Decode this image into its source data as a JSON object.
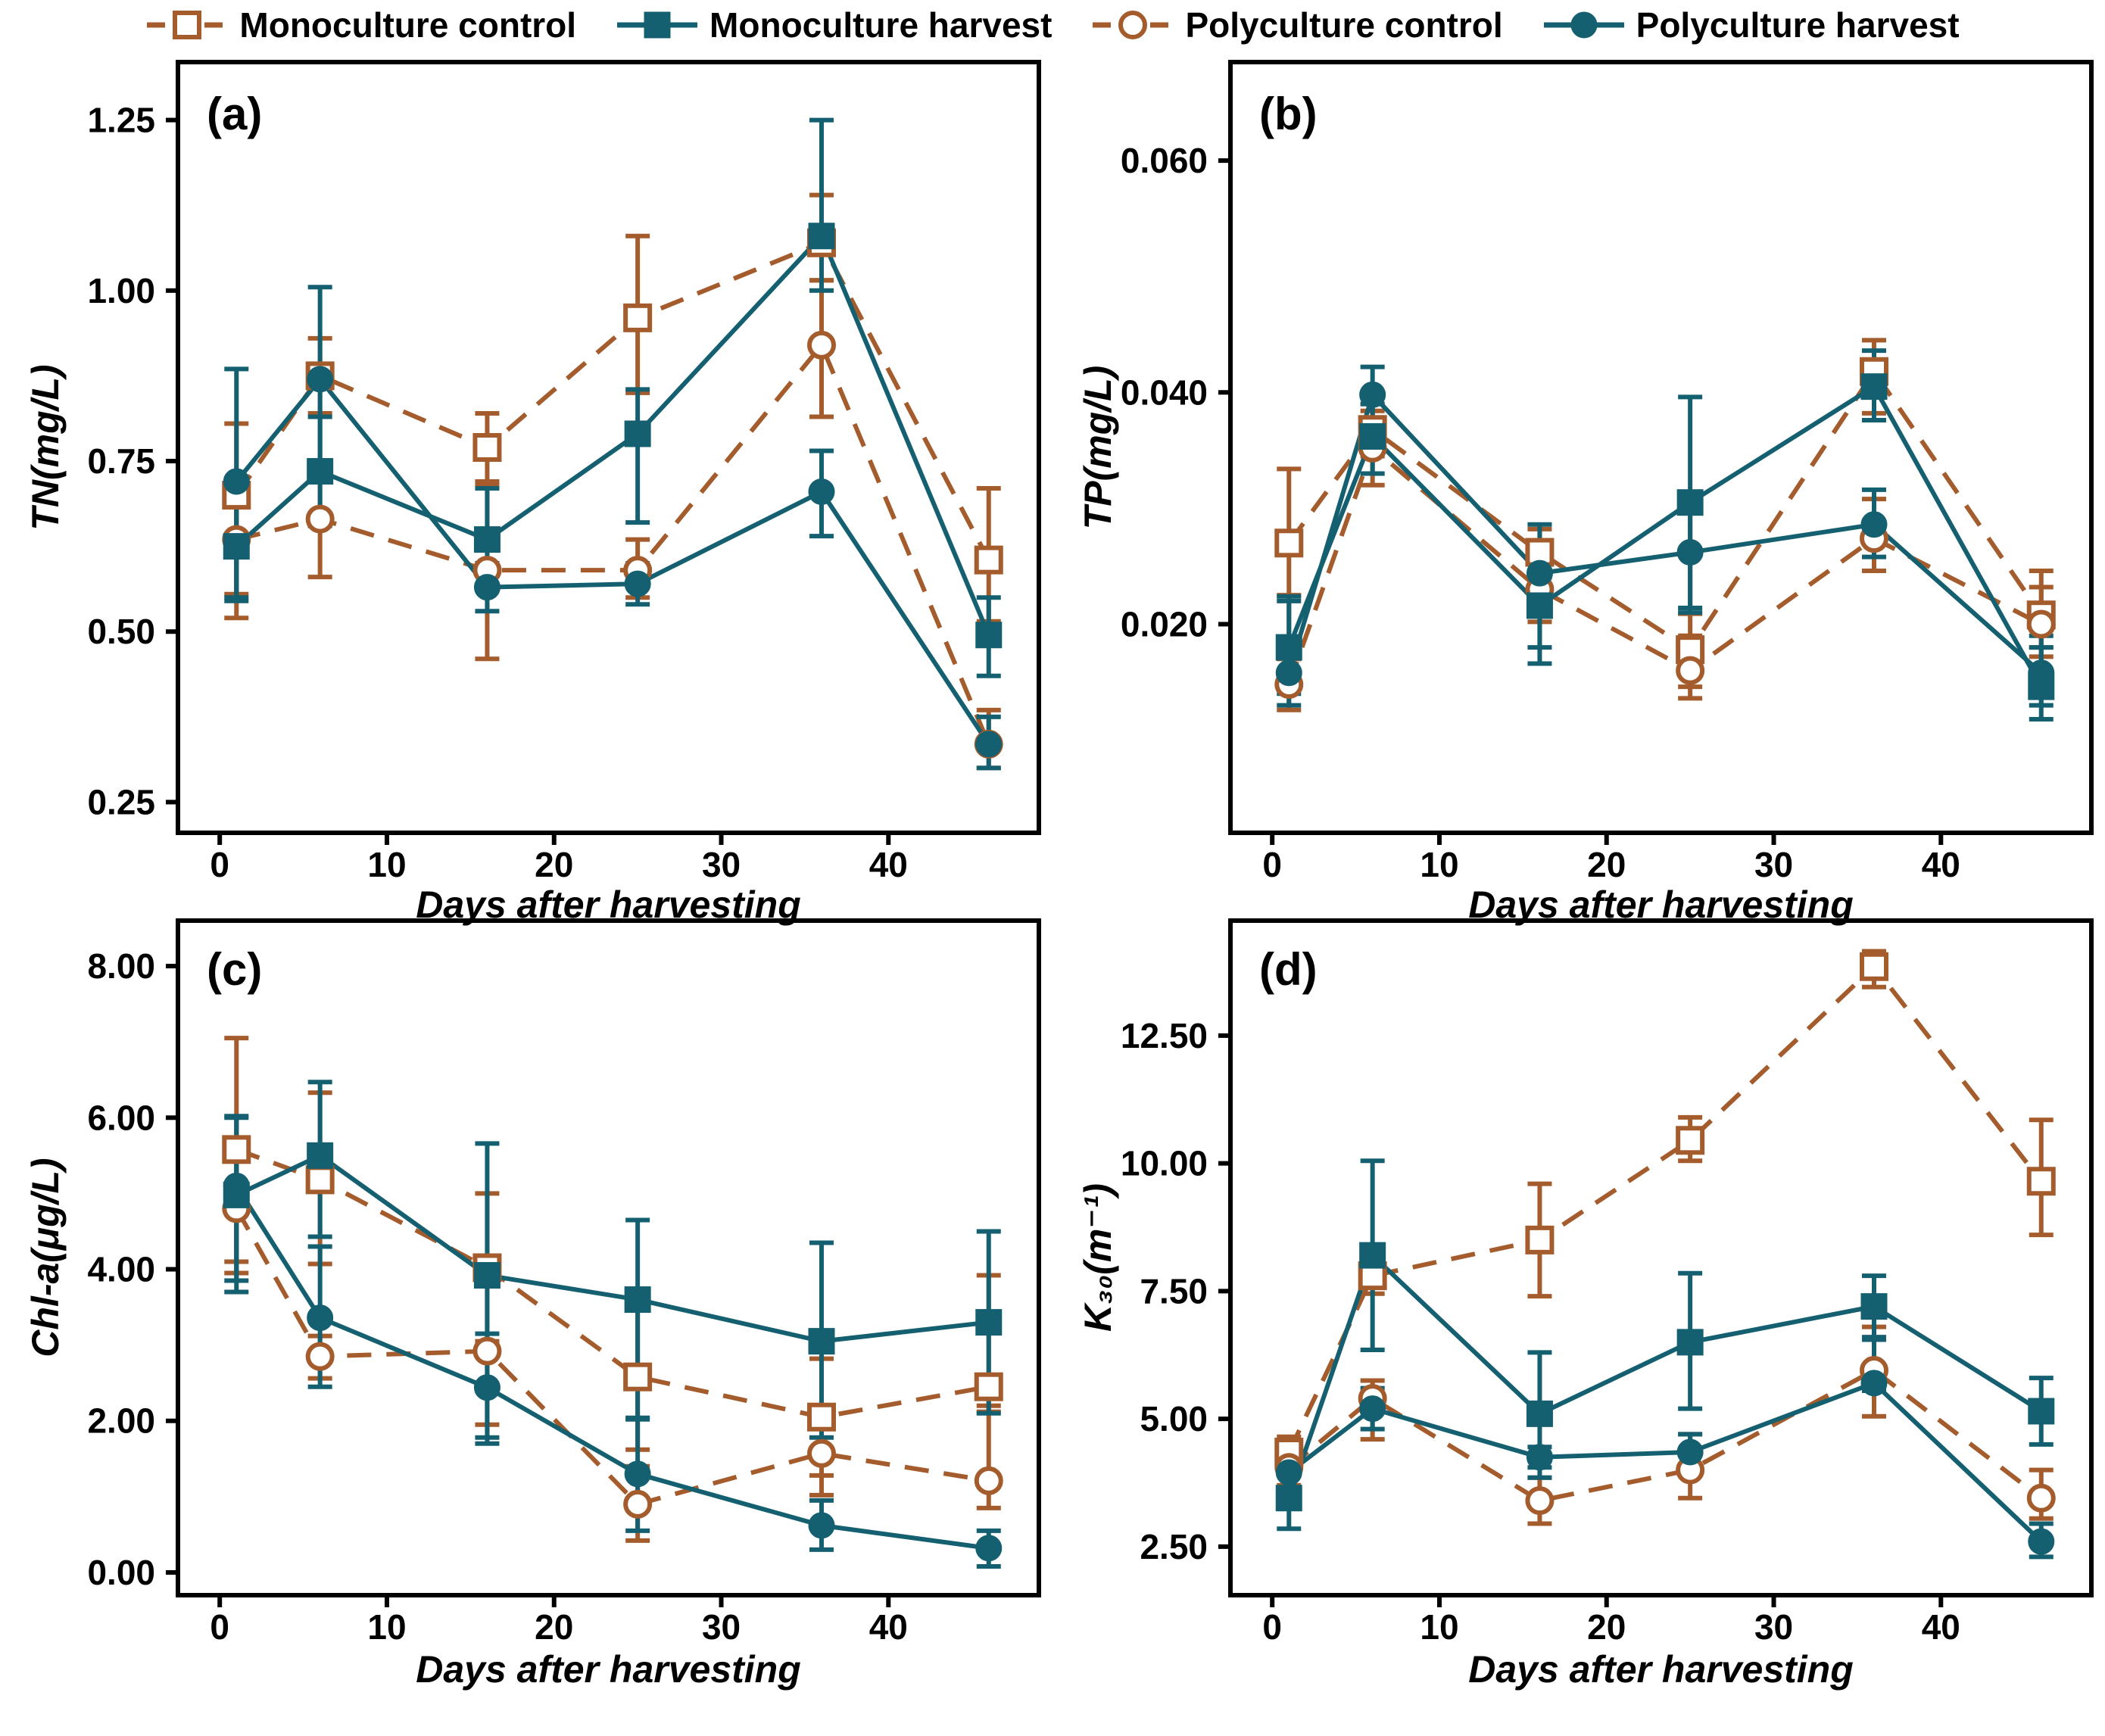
{
  "colors": {
    "brown": "#A55C2D",
    "teal": "#156070",
    "axis": "#000000",
    "background": "#FFFFFF"
  },
  "legend": {
    "items": [
      {
        "label": "Monoculture control",
        "marker": "square-open",
        "color": "#A55C2D",
        "linestyle": "dashed"
      },
      {
        "label": "Monoculture harvest",
        "marker": "square-filled",
        "color": "#156070",
        "linestyle": "solid"
      },
      {
        "label": "Polyculture control",
        "marker": "circle-open",
        "color": "#A55C2D",
        "linestyle": "dashed"
      },
      {
        "label": "Polyculture harvest",
        "marker": "circle-filled",
        "color": "#156070",
        "linestyle": "solid"
      }
    ]
  },
  "chart_data": [
    {
      "panel_label": "(a)",
      "type": "line",
      "ylabel": "TN(mg/L)",
      "xlabel": "Days after harvesting",
      "x": [
        1,
        6,
        16,
        25,
        36,
        46
      ],
      "xlim": [
        -2.5,
        49
      ],
      "xticks": [
        0,
        10,
        20,
        30,
        40
      ],
      "ylim": [
        0.205,
        1.335
      ],
      "yticks": [
        0.25,
        0.5,
        0.75,
        1.0,
        1.25
      ],
      "ytick_labels": [
        "0.25",
        "0.50",
        "0.75",
        "1.00",
        "1.25"
      ],
      "grid": false,
      "series": [
        {
          "name": "Monoculture control",
          "marker": "square-open",
          "color": "#A55C2D",
          "linestyle": "dashed",
          "values": [
            0.7,
            0.875,
            0.77,
            0.96,
            1.07,
            0.605
          ],
          "err_lo": [
            0.52,
            0.82,
            0.715,
            0.85,
            1.015,
            0.515
          ],
          "err_hi": [
            0.805,
            0.93,
            0.82,
            1.08,
            1.14,
            0.71
          ]
        },
        {
          "name": "Polyculture control",
          "marker": "circle-open",
          "color": "#A55C2D",
          "linestyle": "dashed",
          "values": [
            0.635,
            0.665,
            0.59,
            0.59,
            0.92,
            0.335
          ],
          "err_lo": [
            0.555,
            0.58,
            0.46,
            0.55,
            0.815,
            0.3
          ],
          "err_hi": [
            0.705,
            0.75,
            0.72,
            0.635,
            1.015,
            0.385
          ]
        },
        {
          "name": "Monoculture harvest",
          "marker": "square-filled",
          "color": "#156070",
          "linestyle": "solid",
          "values": [
            0.625,
            0.735,
            0.635,
            0.79,
            1.08,
            0.495
          ],
          "err_lo": [
            0.545,
            0.655,
            0.6,
            0.66,
            1.0,
            0.435
          ],
          "err_hi": [
            0.705,
            0.815,
            0.71,
            0.855,
            1.25,
            0.55
          ]
        },
        {
          "name": "Polyculture harvest",
          "marker": "circle-filled",
          "color": "#156070",
          "linestyle": "solid",
          "values": [
            0.72,
            0.87,
            0.565,
            0.57,
            0.705,
            0.335
          ],
          "err_lo": [
            0.55,
            0.73,
            0.53,
            0.54,
            0.64,
            0.3
          ],
          "err_hi": [
            0.885,
            1.005,
            0.6,
            0.6,
            0.765,
            0.375
          ]
        }
      ]
    },
    {
      "panel_label": "(b)",
      "type": "line",
      "ylabel": "TP(mg/L)",
      "xlabel": "Days after harvesting",
      "x": [
        1,
        6,
        16,
        25,
        36,
        46
      ],
      "xlim": [
        -2.5,
        49
      ],
      "xticks": [
        0,
        10,
        20,
        30,
        40
      ],
      "ylim": [
        0.002,
        0.0685
      ],
      "yticks": [
        0.02,
        0.04,
        0.06
      ],
      "ytick_labels": [
        "0.020",
        "0.040",
        "0.060"
      ],
      "grid": false,
      "series": [
        {
          "name": "Monoculture control",
          "marker": "square-open",
          "color": "#A55C2D",
          "linestyle": "dashed",
          "values": [
            0.027,
            0.0368,
            0.0262,
            0.0178,
            0.0418,
            0.0208
          ],
          "err_lo": [
            0.0225,
            0.0345,
            0.024,
            0.0146,
            0.0382,
            0.018
          ],
          "err_hi": [
            0.0334,
            0.039,
            0.0282,
            0.0209,
            0.0445,
            0.0246
          ]
        },
        {
          "name": "Polyculture control",
          "marker": "circle-open",
          "color": "#A55C2D",
          "linestyle": "dashed",
          "values": [
            0.0148,
            0.0352,
            0.023,
            0.016,
            0.0274,
            0.02
          ],
          "err_lo": [
            0.0126,
            0.032,
            0.0202,
            0.0136,
            0.0246,
            0.0172
          ],
          "err_hi": [
            0.017,
            0.0384,
            0.0258,
            0.019,
            0.0308,
            0.0232
          ]
        },
        {
          "name": "Monoculture harvest",
          "marker": "square-filled",
          "color": "#156070",
          "linestyle": "solid",
          "values": [
            0.018,
            0.0362,
            0.0216,
            0.0305,
            0.0405,
            0.0146
          ],
          "err_lo": [
            0.014,
            0.033,
            0.018,
            0.0214,
            0.0376,
            0.0118
          ],
          "err_hi": [
            0.0224,
            0.039,
            0.0242,
            0.0396,
            0.0436,
            0.018
          ]
        },
        {
          "name": "Polyculture harvest",
          "marker": "circle-filled",
          "color": "#156070",
          "linestyle": "solid",
          "values": [
            0.0158,
            0.0398,
            0.0244,
            0.0262,
            0.0286,
            0.0158
          ],
          "err_lo": [
            0.013,
            0.036,
            0.0166,
            0.021,
            0.0258,
            0.013
          ],
          "err_hi": [
            0.022,
            0.0422,
            0.0286,
            0.0312,
            0.0316,
            0.019
          ]
        }
      ]
    },
    {
      "panel_label": "(c)",
      "type": "line",
      "ylabel": "Chl-a(μg/L)",
      "xlabel": "Days after harvesting",
      "x": [
        1,
        6,
        16,
        25,
        36,
        46
      ],
      "xlim": [
        -2.5,
        49
      ],
      "xticks": [
        0,
        10,
        20,
        30,
        40
      ],
      "ylim": [
        -0.3,
        8.6
      ],
      "yticks": [
        0.0,
        2.0,
        4.0,
        6.0,
        8.0
      ],
      "ytick_labels": [
        "0.00",
        "2.00",
        "4.00",
        "6.00",
        "8.00"
      ],
      "grid": false,
      "series": [
        {
          "name": "Monoculture control",
          "marker": "square-open",
          "color": "#A55C2D",
          "linestyle": "dashed",
          "values": [
            5.58,
            5.18,
            4.02,
            2.58,
            2.05,
            2.45
          ],
          "err_lo": [
            4.1,
            4.07,
            3.05,
            1.62,
            1.28,
            2.12
          ],
          "err_hi": [
            7.05,
            6.33,
            5.0,
            3.52,
            2.82,
            3.92
          ]
        },
        {
          "name": "Polyculture control",
          "marker": "circle-open",
          "color": "#A55C2D",
          "linestyle": "dashed",
          "values": [
            4.8,
            2.85,
            2.92,
            0.9,
            1.57,
            1.21
          ],
          "err_lo": [
            3.95,
            2.56,
            1.95,
            0.42,
            1.02,
            0.85
          ],
          "err_hi": [
            5.62,
            3.12,
            3.85,
            1.4,
            2.15,
            2.2
          ]
        },
        {
          "name": "Monoculture harvest",
          "marker": "square-filled",
          "color": "#156070",
          "linestyle": "solid",
          "values": [
            4.98,
            5.5,
            3.92,
            3.6,
            3.05,
            3.3
          ],
          "err_lo": [
            3.85,
            4.43,
            1.78,
            2.02,
            1.78,
            2.1
          ],
          "err_hi": [
            6.0,
            6.47,
            5.66,
            4.65,
            4.35,
            4.5
          ]
        },
        {
          "name": "Polyculture harvest",
          "marker": "circle-filled",
          "color": "#156070",
          "linestyle": "solid",
          "values": [
            5.1,
            3.36,
            2.44,
            1.3,
            0.62,
            0.32
          ],
          "err_lo": [
            3.7,
            2.45,
            1.7,
            0.55,
            0.3,
            0.08
          ],
          "err_hi": [
            6.02,
            4.3,
            3.15,
            2.04,
            0.95,
            0.55
          ]
        }
      ]
    },
    {
      "panel_label": "(d)",
      "type": "line",
      "ylabel": "K₃₀(m⁻¹)",
      "xlabel": "Days after harvesting",
      "x": [
        1,
        6,
        16,
        25,
        36,
        46
      ],
      "xlim": [
        -2.5,
        49
      ],
      "xticks": [
        0,
        10,
        20,
        30,
        40
      ],
      "ylim": [
        1.55,
        14.75
      ],
      "yticks": [
        2.5,
        5.0,
        7.5,
        10.0,
        12.5
      ],
      "ytick_labels": [
        "2.50",
        "5.00",
        "7.50",
        "10.00",
        "12.50"
      ],
      "grid": false,
      "series": [
        {
          "name": "Monoculture control",
          "marker": "square-open",
          "color": "#A55C2D",
          "linestyle": "dashed",
          "values": [
            4.35,
            7.8,
            8.5,
            10.45,
            13.85,
            9.65
          ],
          "err_lo": [
            3.45,
            7.45,
            7.4,
            10.05,
            13.45,
            8.6
          ],
          "err_hi": [
            4.65,
            8.15,
            9.6,
            10.9,
            14.15,
            10.85
          ]
        },
        {
          "name": "Polyculture control",
          "marker": "circle-open",
          "color": "#A55C2D",
          "linestyle": "dashed",
          "values": [
            4.05,
            5.4,
            3.4,
            4.0,
            5.95,
            3.45
          ],
          "err_lo": [
            3.7,
            4.6,
            2.95,
            3.45,
            5.05,
            3.05
          ],
          "err_hi": [
            4.4,
            5.75,
            3.85,
            4.7,
            6.8,
            4.0
          ]
        },
        {
          "name": "Monoculture harvest",
          "marker": "square-filled",
          "color": "#156070",
          "linestyle": "solid",
          "values": [
            3.45,
            8.2,
            5.1,
            6.5,
            7.2,
            5.15
          ],
          "err_lo": [
            2.85,
            6.35,
            4.05,
            5.2,
            6.6,
            4.5
          ],
          "err_hi": [
            4.1,
            10.05,
            6.3,
            7.85,
            7.8,
            5.8
          ]
        },
        {
          "name": "Polyculture harvest",
          "marker": "circle-filled",
          "color": "#156070",
          "linestyle": "solid",
          "values": [
            3.95,
            5.2,
            4.25,
            4.35,
            5.7,
            2.6
          ],
          "err_lo": [
            3.5,
            4.8,
            3.85,
            4.05,
            5.55,
            2.3
          ],
          "err_hi": [
            4.3,
            5.6,
            4.45,
            4.7,
            6.55,
            2.95
          ]
        }
      ]
    }
  ]
}
